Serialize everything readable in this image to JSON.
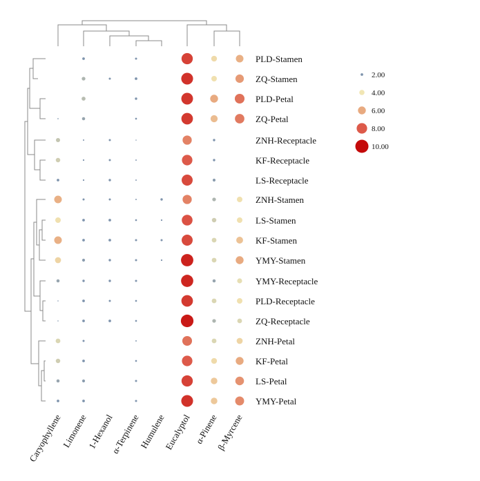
{
  "chart_data": {
    "type": "bubble-heatmap",
    "rows": [
      "PLD-Stamen",
      "ZQ-Stamen",
      "PLD-Petal",
      "ZQ-Petal",
      "ZNH-Receptacle",
      "KF-Receptacle",
      "LS-Receptacle",
      "ZNH-Stamen",
      "LS-Stamen",
      "KF-Stamen",
      "YMY-Stamen",
      "YMY-Receptacle",
      "PLD-Receptacle",
      "ZQ-Receptacle",
      "ZNH-Petal",
      "KF-Petal",
      "LS-Petal",
      "YMY-Petal"
    ],
    "columns": [
      "Caryophyllene",
      "Limonene",
      "1-Hexanol",
      "α-Terpinene",
      "Humulene",
      "Eucalyptol",
      "α-Pinene",
      "β-Myrcene"
    ],
    "values": [
      [
        null,
        2.0,
        null,
        1.6,
        null,
        8.6,
        4.4,
        5.8
      ],
      [
        null,
        2.8,
        1.6,
        2.0,
        null,
        9.0,
        4.2,
        6.4
      ],
      [
        null,
        3.0,
        null,
        1.8,
        null,
        8.9,
        6.0,
        7.4
      ],
      [
        0.9,
        2.4,
        null,
        1.4,
        null,
        8.8,
        5.4,
        7.2
      ],
      [
        3.2,
        1.1,
        1.6,
        0.7,
        null,
        7.0,
        1.8,
        null
      ],
      [
        3.4,
        1.2,
        1.6,
        1.0,
        null,
        8.0,
        1.8,
        null
      ],
      [
        2.0,
        1.2,
        1.8,
        1.0,
        null,
        8.4,
        2.2,
        null
      ],
      [
        5.8,
        1.6,
        1.6,
        1.0,
        1.8,
        7.0,
        2.8,
        4.2
      ],
      [
        4.2,
        2.0,
        2.0,
        1.4,
        1.2,
        8.2,
        3.4,
        4.2
      ],
      [
        5.8,
        2.0,
        2.0,
        1.6,
        1.6,
        8.4,
        3.6,
        5.2
      ],
      [
        4.6,
        2.2,
        1.8,
        1.6,
        1.2,
        9.4,
        3.6,
        6.0
      ],
      [
        2.4,
        1.8,
        1.8,
        1.6,
        null,
        9.3,
        2.4,
        3.8
      ],
      [
        0.6,
        2.0,
        1.6,
        1.4,
        null,
        8.8,
        3.6,
        4.2
      ],
      [
        0.6,
        2.0,
        2.0,
        1.4,
        null,
        9.6,
        2.8,
        3.6
      ],
      [
        3.6,
        1.6,
        null,
        1.0,
        null,
        7.4,
        3.6,
        4.6
      ],
      [
        3.4,
        2.0,
        null,
        1.4,
        null,
        8.0,
        4.4,
        6.0
      ],
      [
        2.4,
        2.2,
        null,
        1.6,
        null,
        8.6,
        5.0,
        6.6
      ],
      [
        2.0,
        2.0,
        null,
        1.6,
        null,
        9.0,
        5.0,
        6.8
      ]
    ],
    "legend": {
      "values": [
        2.0,
        4.0,
        6.0,
        8.0,
        10.0
      ],
      "labels": [
        "2.00",
        "4.00",
        "6.00",
        "8.00",
        "10.00"
      ],
      "placement": "right"
    },
    "colors": [
      "#7f94ad",
      "#f1e6b4",
      "#e8aa80",
      "#dd5a4a",
      "#c40a0a"
    ],
    "dendrogram_color": "#888888"
  }
}
